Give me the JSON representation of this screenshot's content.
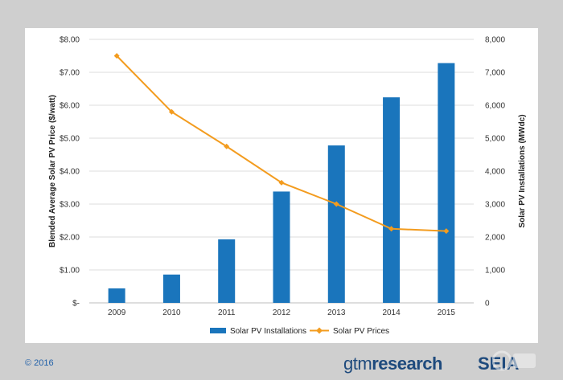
{
  "chart_data": {
    "type": "bar+line",
    "categories": [
      "2009",
      "2010",
      "2011",
      "2012",
      "2013",
      "2014",
      "2015"
    ],
    "series": [
      {
        "name": "Solar PV Installations",
        "type": "bar",
        "axis": "right",
        "color": "#1a75bc",
        "values": [
          440,
          860,
          1930,
          3380,
          4780,
          6240,
          7280
        ]
      },
      {
        "name": "Solar PV Prices",
        "type": "line",
        "axis": "left",
        "color": "#f39c1f",
        "values": [
          7.5,
          5.8,
          4.75,
          3.65,
          3.0,
          2.25,
          2.18
        ]
      }
    ],
    "ylabel_left": "Blended Average Solar PV Price ($/watt)",
    "ylabel_right": "Solar PV Installations (MWdc)",
    "ylim_left": [
      0,
      8
    ],
    "ylim_right": [
      0,
      8000
    ],
    "yticks_left": [
      "$-",
      "$1.00",
      "$2.00",
      "$3.00",
      "$4.00",
      "$5.00",
      "$6.00",
      "$7.00",
      "$8.00"
    ],
    "yticks_right": [
      "0",
      "1,000",
      "2,000",
      "3,000",
      "4,000",
      "5,000",
      "6,000",
      "7,000",
      "8,000"
    ],
    "grid": true,
    "legend": "bottom-center"
  },
  "footer": {
    "copyright": "© 2016",
    "logo_gtm_light": "gtm",
    "logo_gtm_bold": "research",
    "logo_seia": "SEIA"
  }
}
